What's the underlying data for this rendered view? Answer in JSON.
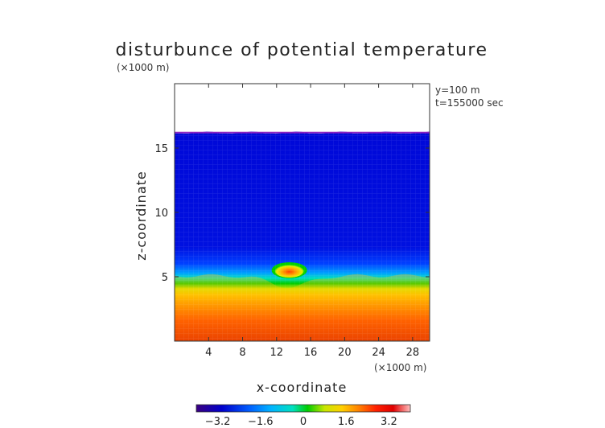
{
  "chart_data": {
    "type": "heatmap",
    "title": "disturbunce of potential temperature",
    "xlabel": "x-coordinate",
    "ylabel": "z-coordinate",
    "x_unit": "(×1000 m)",
    "y_unit": "(×1000 m)",
    "annotations": [
      "y=100 m",
      "t=155000 sec"
    ],
    "xlim": [
      0,
      30
    ],
    "ylim": [
      0,
      20
    ],
    "x_ticks": [
      "4",
      "8",
      "12",
      "16",
      "20",
      "24",
      "28"
    ],
    "y_ticks": [
      "5",
      "10",
      "15"
    ],
    "colorbar": {
      "range": [
        -4.0,
        4.0
      ],
      "tick_labels": [
        "−3.2",
        "−1.6",
        "0",
        "1.6",
        "3.2"
      ],
      "tick_values": [
        -3.2,
        -1.6,
        0,
        1.6,
        3.2
      ],
      "colors": [
        "#3a0080",
        "#0000cc",
        "#0060ff",
        "#00b4ff",
        "#00e0c0",
        "#00cc00",
        "#c8e600",
        "#ffd000",
        "#ff8000",
        "#ff2000",
        "#e00000",
        "#ffc0c0"
      ]
    },
    "field_description_values": {
      "upper_region_value": -2.8,
      "lower_region_value": 3.0,
      "transition_height_km": 5.2,
      "anomaly_center_x_km": 13.5,
      "anomaly_center_z_km": 5.5,
      "anomaly_value": 2.4,
      "data_top_height_km": 16.2
    }
  }
}
